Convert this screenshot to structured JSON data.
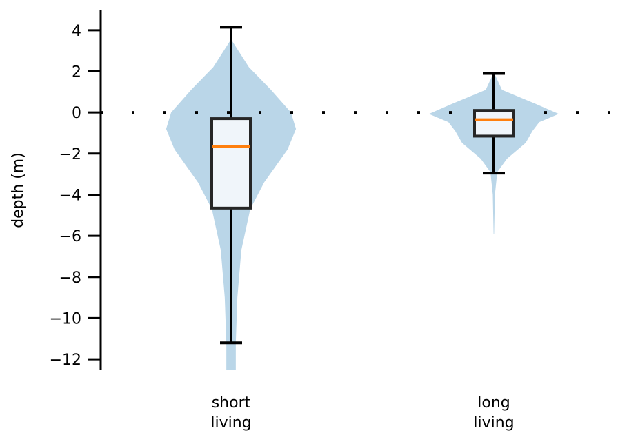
{
  "chart_data": {
    "type": "violin",
    "title": "",
    "xlabel": "",
    "ylabel": "depth (m)",
    "ylim": [
      -12.5,
      5.0
    ],
    "yticks": [
      4,
      2,
      0,
      -2,
      -4,
      -6,
      -8,
      -10,
      -12
    ],
    "ytick_labels": [
      "4",
      "2",
      "0",
      "−2",
      "−4",
      "−6",
      "−8",
      "−10",
      "−12"
    ],
    "grid": false,
    "reference_line": {
      "y": 0,
      "style": "dotted",
      "color": "#000000"
    },
    "colors": {
      "violin": "#bad6e8",
      "box_fill": "#f0f5fa",
      "box_edge": "#262626",
      "median": "#ff7f0e",
      "whisker": "#000000"
    },
    "categories": [
      {
        "label_lines": [
          "short",
          "living"
        ],
        "box": {
          "whisker_high": 4.15,
          "q3": -0.3,
          "median": -1.65,
          "q1": -4.65,
          "whisker_low": -11.2
        },
        "violin_profile": [
          [
            3.56,
            0
          ],
          [
            2.2,
            0.068
          ],
          [
            1.1,
            0.152
          ],
          [
            0,
            0.228
          ],
          [
            -0.8,
            0.247
          ],
          [
            -1.8,
            0.215
          ],
          [
            -3.4,
            0.126
          ],
          [
            -4.7,
            0.073
          ],
          [
            -6.7,
            0.039
          ],
          [
            -9.0,
            0.024
          ],
          [
            -11.2,
            0.018
          ],
          [
            -12.5,
            0.018
          ]
        ]
      },
      {
        "label_lines": [
          "long",
          "living"
        ],
        "box": {
          "whisker_high": 1.9,
          "q3": 0.1,
          "median": -0.35,
          "q1": -1.15,
          "whisker_low": -2.95
        },
        "violin_profile": [
          [
            1.95,
            0
          ],
          [
            1.1,
            0.031
          ],
          [
            0.44,
            0.155
          ],
          [
            -0.07,
            0.247
          ],
          [
            -0.47,
            0.173
          ],
          [
            -0.9,
            0.147
          ],
          [
            -1.48,
            0.121
          ],
          [
            -2.25,
            0.05
          ],
          [
            -2.9,
            0.013
          ],
          [
            -4.0,
            0.004
          ],
          [
            -5.9,
            0.001
          ]
        ]
      }
    ]
  }
}
